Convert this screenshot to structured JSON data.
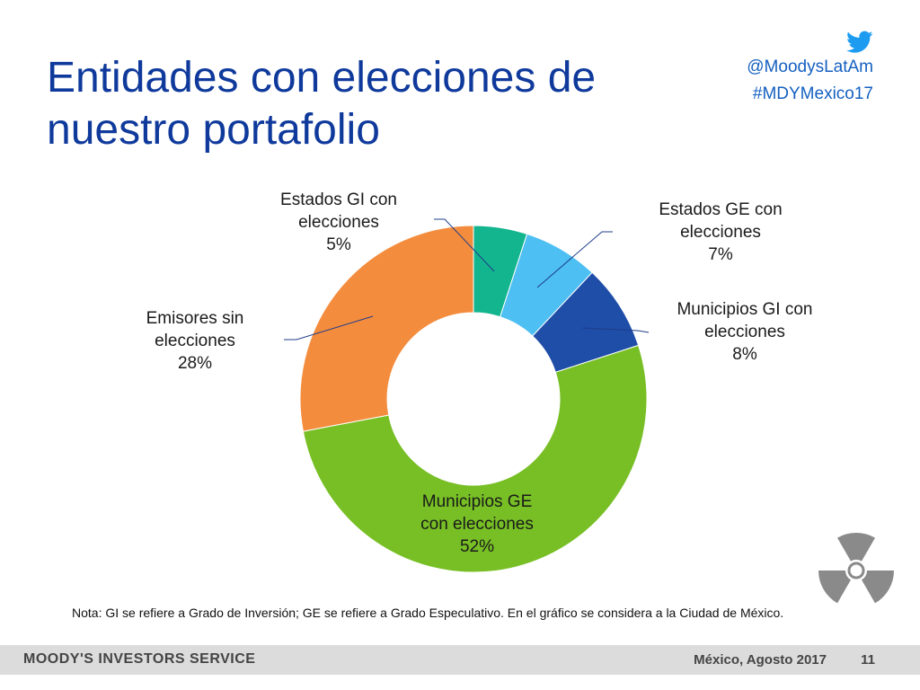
{
  "slide": {
    "title": "Entidades con elecciones de nuestro portafolio",
    "twitter_handle": "@MoodysLatAm",
    "hashtag": "#MDYMexico17",
    "note": "Nota: GI se refiere a Grado de Inversión; GE se refiere a Grado Especulativo. En el gráfico se considera a la Ciudad de México.",
    "footer_brand": "MOODY'S INVESTORS SERVICE",
    "footer_date": "México, Agosto 2017",
    "page_number": "11"
  },
  "icons": {
    "twitter": "twitter-bird-icon",
    "decoration": "radiation-symbol-icon"
  },
  "colors": {
    "title": "#0f3a9c",
    "social": "#1560c0"
  },
  "chart_data": {
    "type": "pie",
    "donut": true,
    "title": "",
    "slices": [
      {
        "label_lines": [
          "Estados GI con",
          "elecciones"
        ],
        "value": 5,
        "display": "5%",
        "color": "#13b58f"
      },
      {
        "label_lines": [
          "Estados GE con",
          "elecciones"
        ],
        "value": 7,
        "display": "7%",
        "color": "#4dbff2"
      },
      {
        "label_lines": [
          "Municipios GI con",
          "elecciones"
        ],
        "value": 8,
        "display": "8%",
        "color": "#1f4ea8"
      },
      {
        "label_lines": [
          "Municipios GE",
          "con elecciones"
        ],
        "value": 52,
        "display": "52%",
        "color": "#77bf25"
      },
      {
        "label_lines": [
          "Emisores sin",
          "elecciones"
        ],
        "value": 28,
        "display": "28%",
        "color": "#f48c3d"
      }
    ]
  }
}
